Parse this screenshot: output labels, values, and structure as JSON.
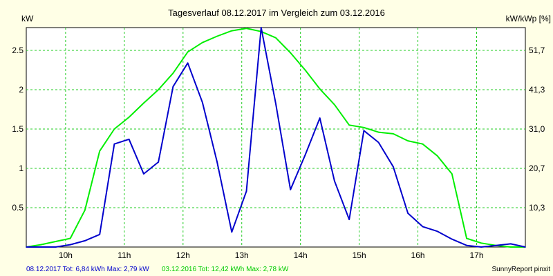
{
  "chart_data": {
    "type": "line",
    "title": "Tagesverlauf 08.12.2017 im Vergleich zum 03.12.2016",
    "ylabel_left": "kW",
    "ylabel_right": "kW/kWp [%]",
    "x_tick_labels": [
      "10h",
      "11h",
      "12h",
      "13h",
      "14h",
      "15h",
      "16h",
      "17h"
    ],
    "x_ticks": [
      10,
      11,
      12,
      13,
      14,
      15,
      16,
      17
    ],
    "xlim": [
      9.33,
      17.83
    ],
    "ylim": [
      0,
      2.79
    ],
    "y_ticks_left": [
      0.5,
      1,
      1.5,
      2,
      2.5
    ],
    "y_tick_labels_left": [
      "0.5",
      "1",
      "1.5",
      "2",
      "2.5"
    ],
    "y_ticks_right": [
      0.5,
      1,
      1.5,
      2,
      2.5
    ],
    "y_tick_labels_right": [
      "10,3",
      "20,7",
      "31,0",
      "41,3",
      "51,7"
    ],
    "grid": true,
    "series": [
      {
        "name": "08.12.2017",
        "color": "#0000cc",
        "points": [
          [
            9.33,
            0
          ],
          [
            9.83,
            0.0
          ],
          [
            10.08,
            0.03
          ],
          [
            10.33,
            0.08
          ],
          [
            10.58,
            0.16
          ],
          [
            10.83,
            1.31
          ],
          [
            11.08,
            1.37
          ],
          [
            11.33,
            0.93
          ],
          [
            11.58,
            1.08
          ],
          [
            11.83,
            2.04
          ],
          [
            12.08,
            2.34
          ],
          [
            12.33,
            1.84
          ],
          [
            12.58,
            1.08
          ],
          [
            12.83,
            0.19
          ],
          [
            13.08,
            0.71
          ],
          [
            13.33,
            2.79
          ],
          [
            13.58,
            1.82
          ],
          [
            13.83,
            0.73
          ],
          [
            14.08,
            1.17
          ],
          [
            14.33,
            1.64
          ],
          [
            14.58,
            0.84
          ],
          [
            14.83,
            0.35
          ],
          [
            15.08,
            1.48
          ],
          [
            15.33,
            1.33
          ],
          [
            15.58,
            1.02
          ],
          [
            15.83,
            0.43
          ],
          [
            16.08,
            0.26
          ],
          [
            16.33,
            0.2
          ],
          [
            16.58,
            0.1
          ],
          [
            16.83,
            0.02
          ],
          [
            17.08,
            0.0
          ],
          [
            17.33,
            0.02
          ],
          [
            17.58,
            0.04
          ],
          [
            17.83,
            0.0
          ]
        ]
      },
      {
        "name": "03.12.2016",
        "color": "#00ee00",
        "points": [
          [
            9.33,
            0
          ],
          [
            9.58,
            0.03
          ],
          [
            9.83,
            0.07
          ],
          [
            10.08,
            0.11
          ],
          [
            10.33,
            0.47
          ],
          [
            10.58,
            1.22
          ],
          [
            10.83,
            1.5
          ],
          [
            11.08,
            1.65
          ],
          [
            11.33,
            1.83
          ],
          [
            11.58,
            2.0
          ],
          [
            11.83,
            2.21
          ],
          [
            12.08,
            2.48
          ],
          [
            12.33,
            2.6
          ],
          [
            12.58,
            2.68
          ],
          [
            12.83,
            2.75
          ],
          [
            13.08,
            2.78
          ],
          [
            13.33,
            2.74
          ],
          [
            13.58,
            2.66
          ],
          [
            13.83,
            2.47
          ],
          [
            14.08,
            2.25
          ],
          [
            14.33,
            2.01
          ],
          [
            14.58,
            1.81
          ],
          [
            14.83,
            1.55
          ],
          [
            15.08,
            1.52
          ],
          [
            15.33,
            1.46
          ],
          [
            15.58,
            1.44
          ],
          [
            15.83,
            1.35
          ],
          [
            16.08,
            1.31
          ],
          [
            16.33,
            1.16
          ],
          [
            16.58,
            0.93
          ],
          [
            16.83,
            0.11
          ],
          [
            17.08,
            0.05
          ],
          [
            17.33,
            0.02
          ],
          [
            17.58,
            0.0
          ],
          [
            17.83,
            0.0
          ]
        ]
      }
    ]
  },
  "footer": {
    "series1_text": "08.12.2017 Tot: 6,84 kWh Max: 2,79 kW",
    "series2_text": "03.12.2016 Tot: 12,42 kWh Max: 2,78 kW",
    "credit": "SunnyReport pinxit"
  },
  "colors": {
    "background": "#ffffe6",
    "plot_background": "#ffffff",
    "grid": "#22cc22",
    "series1": "#0000cc",
    "series2": "#00ee00"
  }
}
